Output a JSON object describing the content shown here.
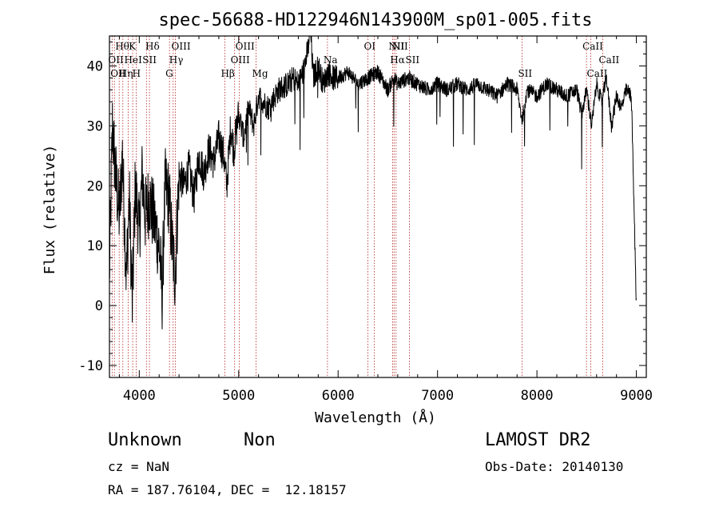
{
  "chart_data": {
    "type": "line",
    "title": "spec-56688-HD122946N143900M_sp01-005.fits",
    "xlabel": "Wavelength (Å)",
    "ylabel": "Flux (relative)",
    "xlim": [
      3700,
      9100
    ],
    "ylim": [
      -12,
      45
    ],
    "xticks": [
      4000,
      5000,
      6000,
      7000,
      8000,
      9000
    ],
    "yticks": [
      -10,
      0,
      10,
      20,
      30,
      40
    ],
    "grid": false,
    "series": [
      {
        "x": [
          3700,
          3730,
          3760,
          3800,
          3830,
          3870,
          3900,
          3930,
          3960,
          4000,
          4030,
          4060,
          4100,
          4150,
          4200,
          4230,
          4260,
          4300,
          4330,
          4360,
          4400,
          4450,
          4500,
          4550,
          4600,
          4650,
          4700,
          4750,
          4800,
          4850,
          4880,
          4920,
          4950,
          5000,
          5050,
          5100,
          5150,
          5200,
          5300,
          5400,
          5500,
          5550,
          5600,
          5650,
          5700,
          5720,
          5750,
          5800,
          5850,
          5900,
          5950,
          6000,
          6100,
          6200,
          6300,
          6400,
          6500,
          6560,
          6600,
          6700,
          6800,
          6900,
          7000,
          7100,
          7200,
          7300,
          7400,
          7500,
          7600,
          7700,
          7800,
          7850,
          7900,
          8000,
          8100,
          8200,
          8300,
          8400,
          8450,
          8500,
          8550,
          8600,
          8650,
          8700,
          8750,
          8800,
          8850,
          8900,
          8950,
          9000
        ],
        "values": [
          5,
          30,
          22,
          15,
          25,
          5,
          18,
          0,
          20,
          12,
          22,
          15,
          18,
          14,
          10,
          2,
          20,
          18,
          10,
          5,
          22,
          20,
          23,
          18,
          25,
          22,
          26,
          24,
          28,
          25,
          20,
          30,
          26,
          32,
          28,
          33,
          30,
          35,
          33,
          36,
          37,
          38,
          37,
          39,
          43,
          47,
          38,
          40,
          37,
          39,
          38,
          38,
          39,
          37,
          38,
          39,
          36,
          38,
          37,
          38,
          37,
          36,
          37,
          36,
          37,
          36,
          37,
          36,
          35,
          37,
          36,
          31,
          36,
          35,
          37,
          36,
          35,
          36,
          32,
          36,
          30,
          37,
          34,
          38,
          30,
          35,
          33,
          36,
          35,
          0
        ]
      }
    ],
    "spectral_lines": [
      {
        "wl": 3727,
        "label": "OII",
        "row": 2
      },
      {
        "wl": 3750,
        "label": "OII",
        "row": 3
      },
      {
        "wl": 3798,
        "label": "Hθ",
        "row": 1
      },
      {
        "wl": 3835,
        "label": "Hη",
        "row": 3
      },
      {
        "wl": 3889,
        "label": "HeI",
        "row": 2
      },
      {
        "wl": 3934,
        "label": "K",
        "row": 1
      },
      {
        "wl": 3970,
        "label": "H",
        "row": 3
      },
      {
        "wl": 4072,
        "label": "SII",
        "row": 2
      },
      {
        "wl": 4102,
        "label": "Hδ",
        "row": 1
      },
      {
        "wl": 4304,
        "label": "G",
        "row": 3
      },
      {
        "wl": 4341,
        "label": "Hγ",
        "row": 2
      },
      {
        "wl": 4363,
        "label": "OIII",
        "row": 1
      },
      {
        "wl": 4861,
        "label": "Hβ",
        "row": 3
      },
      {
        "wl": 4959,
        "label": "OIII",
        "row": 2
      },
      {
        "wl": 5007,
        "label": "OIII",
        "row": 1
      },
      {
        "wl": 5175,
        "label": "Mg",
        "row": 3
      },
      {
        "wl": 5893,
        "label": "Na",
        "row": 2
      },
      {
        "wl": 6300,
        "label": "OI",
        "row": 1
      },
      {
        "wl": 6364,
        "label": "OI",
        "row": 3
      },
      {
        "wl": 6548,
        "label": "NII",
        "row": 1
      },
      {
        "wl": 6563,
        "label": "Hα",
        "row": 2
      },
      {
        "wl": 6583,
        "label": "NII",
        "row": 1
      },
      {
        "wl": 6717,
        "label": "SII",
        "row": 2
      },
      {
        "wl": 7850,
        "label": "SII",
        "row": 3
      },
      {
        "wl": 8498,
        "label": "CaII",
        "row": 1
      },
      {
        "wl": 8542,
        "label": "CaII",
        "row": 3
      },
      {
        "wl": 8662,
        "label": "CaII",
        "row": 2
      }
    ]
  },
  "footer": {
    "object_class": "Unknown",
    "object_subclass": "Non",
    "survey": "LAMOST DR2",
    "redshift": "cz = NaN",
    "obs_date": "Obs-Date: 20140130",
    "coords": "RA = 187.76104, DEC =  12.18157"
  }
}
